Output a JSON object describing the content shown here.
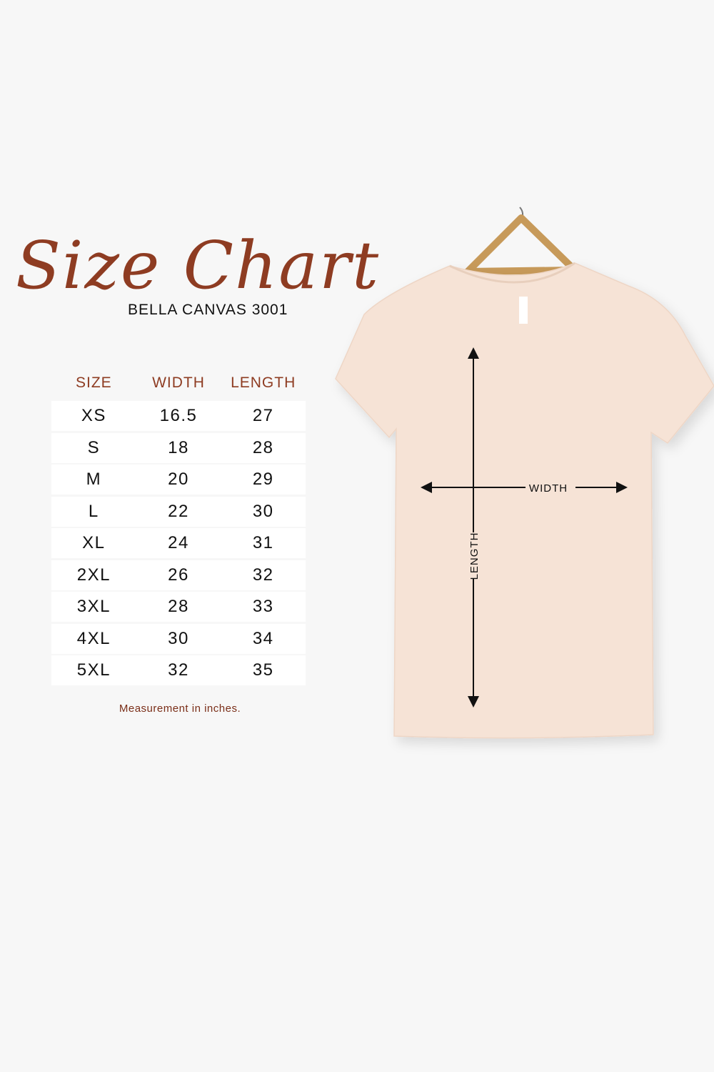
{
  "title": "Size Chart",
  "subtitle": "BELLA CANVAS 3001",
  "table": {
    "headers": [
      "SIZE",
      "WIDTH",
      "LENGTH"
    ],
    "rows": [
      [
        "XS",
        "16.5",
        "27"
      ],
      [
        "S",
        "18",
        "28"
      ],
      [
        "M",
        "20",
        "29"
      ],
      [
        "L",
        "22",
        "30"
      ],
      [
        "XL",
        "24",
        "31"
      ],
      [
        "2XL",
        "26",
        "32"
      ],
      [
        "3XL",
        "28",
        "33"
      ],
      [
        "4XL",
        "30",
        "34"
      ],
      [
        "5XL",
        "32",
        "35"
      ]
    ]
  },
  "note": "Measurement in inches.",
  "diagram": {
    "width_label": "WIDTH",
    "length_label": "LENGTH"
  },
  "colors": {
    "accent": "#8e3c22",
    "shirt": "#f6e3d6",
    "background": "#f7f7f7"
  }
}
